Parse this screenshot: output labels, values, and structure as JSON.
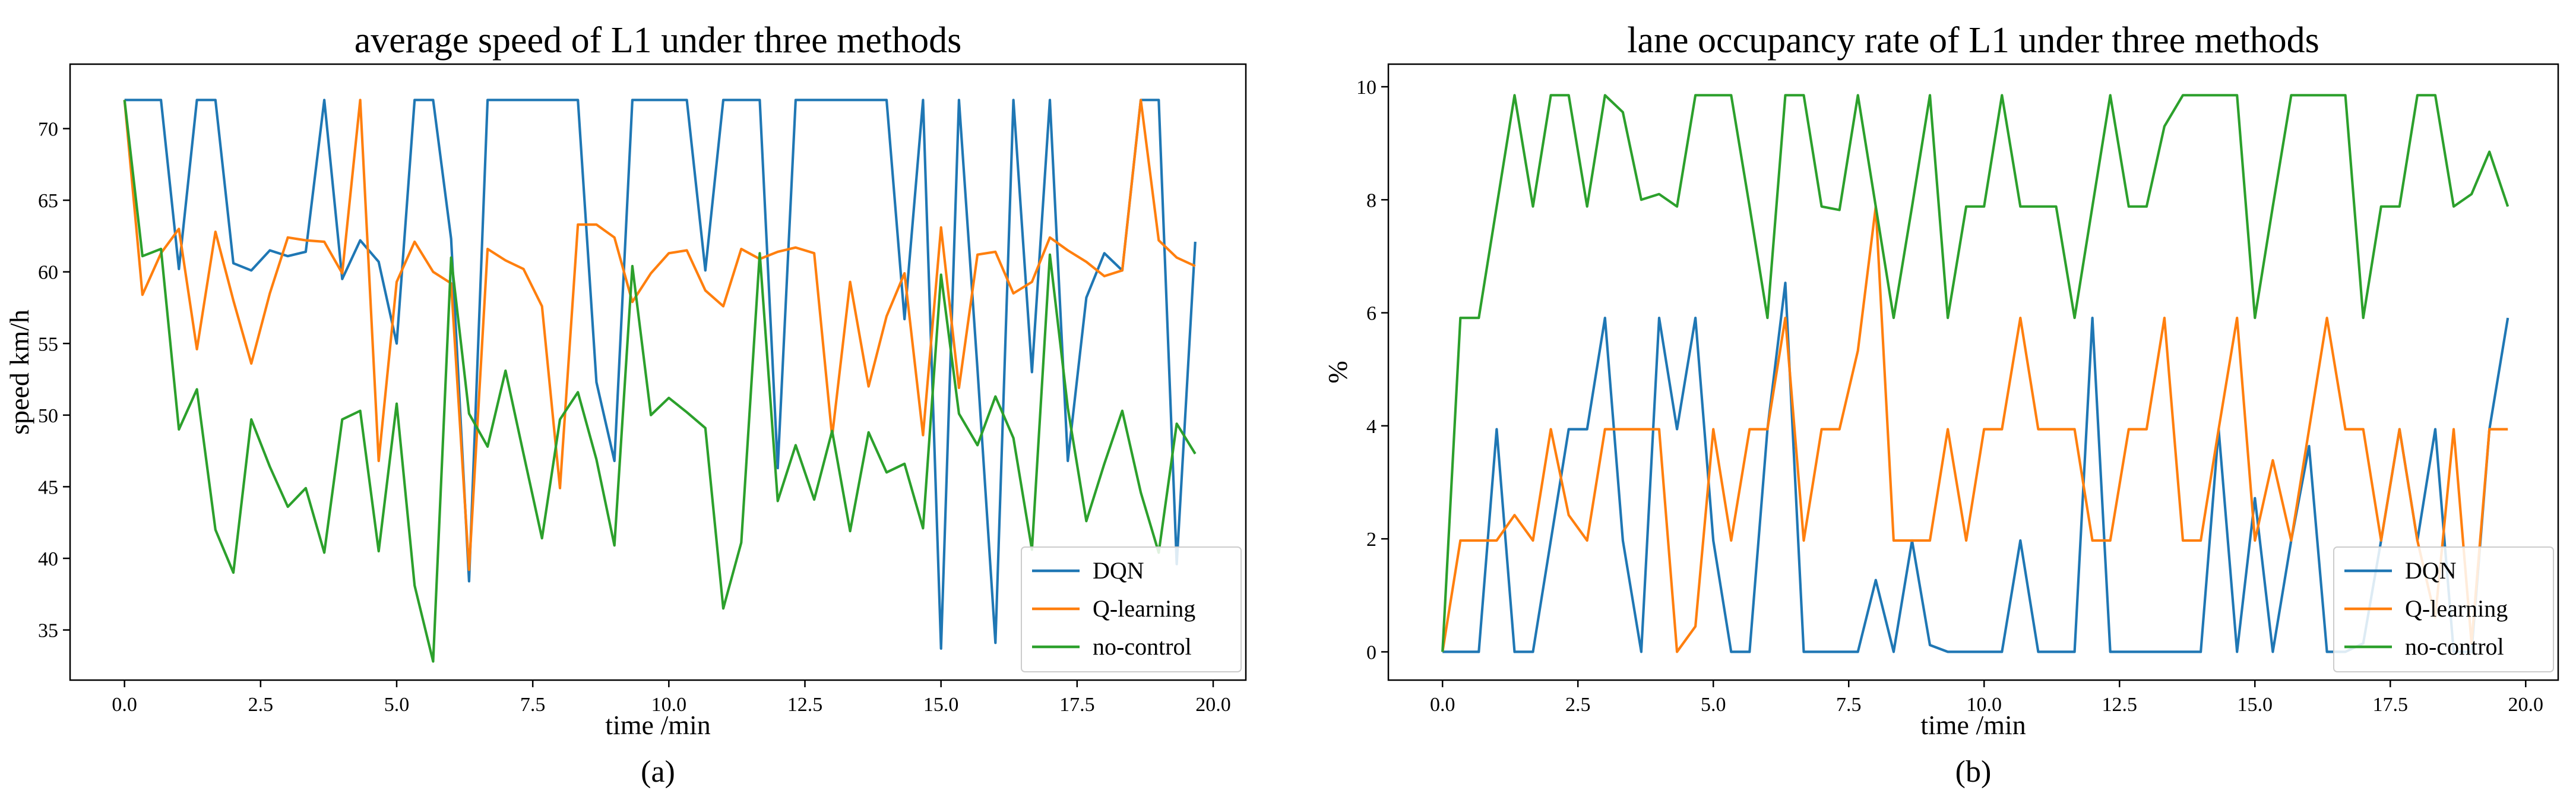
{
  "colors": {
    "DQN": "#1f77b4",
    "Q-learning": "#ff7f0e",
    "no-control": "#2ca02c"
  },
  "chart_data": [
    {
      "type": "line",
      "panel_label": "(a)",
      "title": "average speed of L1 under three methods",
      "xlabel": "time /min",
      "ylabel": "speed km/h",
      "xlim": [
        -1.0,
        20.6
      ],
      "ylim": [
        31.5,
        74.5
      ],
      "xticks": [
        0.0,
        2.5,
        5.0,
        7.5,
        10.0,
        12.5,
        15.0,
        17.5,
        20.0
      ],
      "xtick_labels": [
        "0.0",
        "2.5",
        "5.0",
        "7.5",
        "10.0",
        "12.5",
        "15.0",
        "17.5",
        "20.0"
      ],
      "yticks": [
        35,
        40,
        45,
        50,
        55,
        60,
        65,
        70
      ],
      "ytick_labels": [
        "35",
        "40",
        "45",
        "50",
        "55",
        "60",
        "65",
        "70"
      ],
      "grid": false,
      "legend_position": "lower-right",
      "series": [
        {
          "name": "DQN",
          "x": [
            0,
            0.33,
            0.67,
            1,
            1.33,
            1.67,
            2,
            2.33,
            2.67,
            3,
            3.33,
            3.67,
            4,
            4.33,
            4.67,
            5,
            5.33,
            5.67,
            6,
            6.33,
            6.67,
            7,
            7.33,
            7.67,
            8,
            8.33,
            8.67,
            9,
            9.33,
            9.67,
            10,
            10.33,
            10.67,
            11,
            11.33,
            11.67,
            12,
            12.33,
            12.67,
            13,
            13.33,
            13.67,
            14,
            14.33,
            14.67,
            15,
            15.33,
            15.67,
            16,
            16.33,
            16.67,
            17,
            17.33,
            17.67,
            18,
            18.33,
            18.67,
            19,
            19.33,
            19.67
          ],
          "y": [
            72,
            72,
            72,
            60.2,
            72,
            72,
            60.6,
            60.1,
            61.5,
            61.1,
            61.4,
            72,
            59.5,
            62.2,
            60.7,
            55,
            72,
            72,
            62.3,
            38.4,
            72,
            72,
            72,
            72,
            72,
            72,
            52.3,
            46.8,
            72,
            72,
            72,
            72,
            60.1,
            72,
            72,
            72,
            46.3,
            72,
            72,
            72,
            72,
            72,
            72,
            56.7,
            72,
            33.7,
            72,
            53.2,
            34.1,
            72,
            53,
            72,
            46.8,
            58.2,
            61.3,
            60.1,
            72,
            72,
            39.6,
            62.1
          ]
        },
        {
          "name": "Q-learning",
          "x": [
            0,
            0.33,
            0.67,
            1,
            1.33,
            1.67,
            2,
            2.33,
            2.67,
            3,
            3.33,
            3.67,
            4,
            4.33,
            4.67,
            5,
            5.33,
            5.67,
            6,
            6.33,
            6.67,
            7,
            7.33,
            7.67,
            8,
            8.33,
            8.67,
            9,
            9.33,
            9.67,
            10,
            10.33,
            10.67,
            11,
            11.33,
            11.67,
            12,
            12.33,
            12.67,
            13,
            13.33,
            13.67,
            14,
            14.33,
            14.67,
            15,
            15.33,
            15.67,
            16,
            16.33,
            16.67,
            17,
            17.33,
            17.67,
            18,
            18.33,
            18.67,
            19,
            19.33,
            19.67
          ],
          "y": [
            72,
            58.4,
            61.3,
            63,
            54.6,
            62.8,
            58,
            53.6,
            58.5,
            62.4,
            62.2,
            62.1,
            59.9,
            72,
            46.8,
            59.3,
            62.1,
            60,
            59.2,
            39.2,
            61.6,
            60.8,
            60.2,
            57.6,
            44.9,
            63.3,
            63.3,
            62.4,
            57.9,
            59.9,
            61.3,
            61.5,
            58.7,
            57.6,
            61.6,
            60.9,
            61.4,
            61.7,
            61.3,
            48.5,
            59.3,
            52,
            56.9,
            59.9,
            48.6,
            63.1,
            51.9,
            61.2,
            61.4,
            58.5,
            59.3,
            62.4,
            61.5,
            60.7,
            59.7,
            60.1,
            72,
            62.2,
            61,
            60.4
          ]
        },
        {
          "name": "no-control",
          "x": [
            0,
            0.33,
            0.67,
            1,
            1.33,
            1.67,
            2,
            2.33,
            2.67,
            3,
            3.33,
            3.67,
            4,
            4.33,
            4.67,
            5,
            5.33,
            5.67,
            6,
            6.33,
            6.67,
            7,
            7.33,
            7.67,
            8,
            8.33,
            8.67,
            9,
            9.33,
            9.67,
            10,
            10.33,
            10.67,
            11,
            11.33,
            11.67,
            12,
            12.33,
            12.67,
            13,
            13.33,
            13.67,
            14,
            14.33,
            14.67,
            15,
            15.33,
            15.67,
            16,
            16.33,
            16.67,
            17,
            17.33,
            17.67,
            18,
            18.33,
            18.67,
            19,
            19.33,
            19.67
          ],
          "y": [
            72,
            61.1,
            61.6,
            49,
            51.8,
            42,
            39,
            49.7,
            46.4,
            43.6,
            44.9,
            40.4,
            49.7,
            50.3,
            40.5,
            50.8,
            38.1,
            32.8,
            61,
            50.1,
            47.8,
            53.1,
            47.3,
            41.4,
            49.7,
            51.6,
            46.9,
            40.9,
            60.4,
            50,
            51.2,
            50.2,
            49.1,
            36.5,
            41.1,
            61.3,
            44,
            47.9,
            44.1,
            48.9,
            41.9,
            48.8,
            46,
            46.6,
            42.1,
            59.8,
            50.1,
            47.9,
            51.3,
            48.4,
            40.6,
            61.2,
            50.5,
            42.6,
            46.6,
            50.3,
            44.6,
            40.4,
            49.4,
            47.3
          ]
        }
      ]
    },
    {
      "type": "line",
      "panel_label": "(b)",
      "title": "lane occupancy rate of L1 under three methods",
      "xlabel": "time /min",
      "ylabel": "%",
      "xlim": [
        -1.0,
        20.6
      ],
      "ylim": [
        -0.5,
        10.4
      ],
      "xticks": [
        0.0,
        2.5,
        5.0,
        7.5,
        10.0,
        12.5,
        15.0,
        17.5,
        20.0
      ],
      "xtick_labels": [
        "0.0",
        "2.5",
        "5.0",
        "7.5",
        "10.0",
        "12.5",
        "15.0",
        "17.5",
        "20.0"
      ],
      "yticks": [
        0,
        2,
        4,
        6,
        8,
        10
      ],
      "ytick_labels": [
        "0",
        "2",
        "4",
        "6",
        "8",
        "10"
      ],
      "grid": false,
      "legend_position": "lower-right",
      "series": [
        {
          "name": "DQN",
          "x": [
            0,
            0.33,
            0.67,
            1,
            1.33,
            1.67,
            2,
            2.33,
            2.67,
            3,
            3.33,
            3.67,
            4,
            4.33,
            4.67,
            5,
            5.33,
            5.67,
            6,
            6.33,
            6.67,
            7,
            7.33,
            7.67,
            8,
            8.33,
            8.67,
            9,
            9.33,
            9.67,
            10,
            10.33,
            10.67,
            11,
            11.33,
            11.67,
            12,
            12.33,
            12.67,
            13,
            13.33,
            13.67,
            14,
            14.33,
            14.67,
            15,
            15.33,
            15.67,
            16,
            16.33,
            16.67,
            17,
            17.33,
            17.67,
            18,
            18.33,
            18.67,
            19,
            19.33,
            19.67
          ],
          "y": [
            0,
            0,
            0,
            3.94,
            0,
            0,
            1.97,
            3.94,
            3.94,
            5.91,
            1.97,
            0,
            5.91,
            3.94,
            5.91,
            1.97,
            0,
            0,
            3.94,
            6.53,
            0,
            0,
            0,
            0,
            1.27,
            0,
            1.97,
            0.12,
            0,
            0,
            0,
            0,
            1.97,
            0,
            0,
            0,
            5.91,
            0,
            0,
            0,
            0,
            0,
            0,
            3.94,
            0,
            2.72,
            0,
            1.97,
            3.64,
            0,
            0,
            0.15,
            1.97,
            3.94,
            1.97,
            3.94,
            0,
            0,
            3.94,
            5.91
          ]
        },
        {
          "name": "Q-learning",
          "x": [
            0,
            0.33,
            0.67,
            1,
            1.33,
            1.67,
            2,
            2.33,
            2.67,
            3,
            3.33,
            3.67,
            4,
            4.33,
            4.67,
            5,
            5.33,
            5.67,
            6,
            6.33,
            6.67,
            7,
            7.33,
            7.67,
            8,
            8.33,
            8.67,
            9,
            9.33,
            9.67,
            10,
            10.33,
            10.67,
            11,
            11.33,
            11.67,
            12,
            12.33,
            12.67,
            13,
            13.33,
            13.67,
            14,
            14.33,
            14.67,
            15,
            15.33,
            15.67,
            16,
            16.33,
            16.67,
            17,
            17.33,
            17.67,
            18,
            18.33,
            18.67,
            19,
            19.33,
            19.67
          ],
          "y": [
            0,
            1.97,
            1.97,
            1.97,
            2.42,
            1.97,
            3.94,
            2.42,
            1.97,
            3.94,
            3.94,
            3.94,
            3.94,
            0,
            0.45,
            3.94,
            1.97,
            3.94,
            3.94,
            5.91,
            1.97,
            3.94,
            3.94,
            5.33,
            7.88,
            1.97,
            1.97,
            1.97,
            3.94,
            1.97,
            3.94,
            3.94,
            5.91,
            3.94,
            3.94,
            3.94,
            1.97,
            1.97,
            3.94,
            3.94,
            5.91,
            1.97,
            1.97,
            3.94,
            5.91,
            1.97,
            3.39,
            1.97,
            3.94,
            5.91,
            3.94,
            3.94,
            1.97,
            3.94,
            1.97,
            0.61,
            3.94,
            0.15,
            3.94,
            3.94
          ]
        },
        {
          "name": "no-control",
          "x": [
            0,
            0.33,
            0.67,
            1,
            1.33,
            1.67,
            2,
            2.33,
            2.67,
            3,
            3.33,
            3.67,
            4,
            4.33,
            4.67,
            5,
            5.33,
            5.67,
            6,
            6.33,
            6.67,
            7,
            7.33,
            7.67,
            8,
            8.33,
            8.67,
            9,
            9.33,
            9.67,
            10,
            10.33,
            10.67,
            11,
            11.33,
            11.67,
            12,
            12.33,
            12.67,
            13,
            13.33,
            13.67,
            14,
            14.33,
            14.67,
            15,
            15.33,
            15.67,
            16,
            16.33,
            16.67,
            17,
            17.33,
            17.67,
            18,
            18.33,
            18.67,
            19,
            19.33,
            19.67
          ],
          "y": [
            0,
            5.91,
            5.91,
            7.88,
            9.85,
            7.88,
            9.85,
            9.85,
            7.88,
            9.85,
            9.55,
            8,
            8.1,
            7.88,
            9.85,
            9.85,
            9.85,
            7.88,
            5.91,
            9.85,
            9.85,
            7.88,
            7.82,
            9.85,
            7.88,
            5.91,
            7.88,
            9.85,
            5.91,
            7.88,
            7.88,
            9.85,
            7.88,
            7.88,
            7.88,
            5.91,
            7.88,
            9.85,
            7.88,
            7.88,
            9.3,
            9.85,
            9.85,
            9.85,
            9.85,
            5.91,
            7.88,
            9.85,
            9.85,
            9.85,
            9.85,
            5.91,
            7.88,
            7.88,
            9.85,
            9.85,
            7.88,
            8.1,
            8.85,
            7.88
          ]
        }
      ]
    }
  ]
}
